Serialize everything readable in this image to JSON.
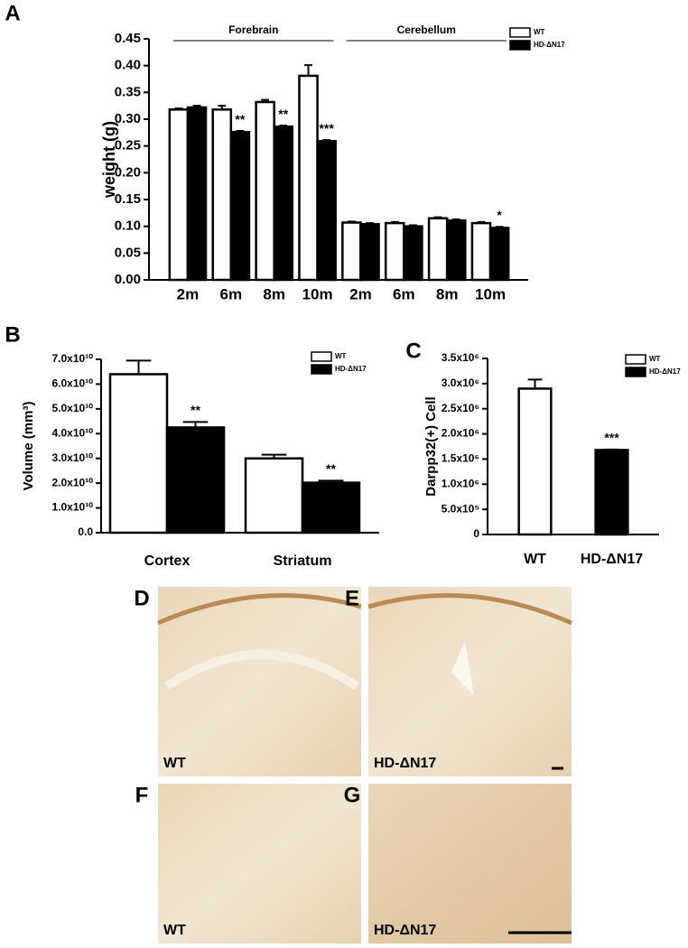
{
  "chart_data": [
    {
      "type": "bar",
      "panel": "A",
      "y_label": "weight (g)",
      "groups": [
        "Forebrain",
        "Cerebellum"
      ],
      "categories": [
        "2m",
        "6m",
        "8m",
        "10m",
        "2m",
        "6m",
        "8m",
        "10m"
      ],
      "series": [
        {
          "name": "WT",
          "color": "#ffffff",
          "values": [
            0.318,
            0.318,
            0.332,
            0.381,
            0.107,
            0.106,
            0.115,
            0.106
          ],
          "errors": [
            0.002,
            0.007,
            0.004,
            0.02,
            0.002,
            0.002,
            0.002,
            0.002
          ]
        },
        {
          "name": "HD-ΔN17",
          "color": "#000000",
          "values": [
            0.322,
            0.276,
            0.286,
            0.259,
            0.104,
            0.1,
            0.111,
            0.097
          ],
          "errors": [
            0.003,
            0.002,
            0.002,
            0.002,
            0.002,
            0.002,
            0.002,
            0.002
          ],
          "significance": [
            null,
            "**",
            "**",
            "***",
            null,
            null,
            null,
            "*"
          ]
        }
      ],
      "ylim": [
        0,
        0.45
      ],
      "yticks": [
        {
          "value": 0,
          "label": "0.00"
        },
        {
          "value": 0.05,
          "label": "0.05"
        },
        {
          "value": 0.1,
          "label": "0.10"
        },
        {
          "value": 0.15,
          "label": "0.15"
        },
        {
          "value": 0.2,
          "label": "0.20"
        },
        {
          "value": 0.25,
          "label": "0.25"
        },
        {
          "value": 0.3,
          "label": "0.30"
        },
        {
          "value": 0.35,
          "label": "0.35"
        },
        {
          "value": 0.4,
          "label": "0.40"
        },
        {
          "value": 0.45,
          "label": "0.45"
        }
      ]
    },
    {
      "type": "bar",
      "panel": "B",
      "y_label": "Volume (mm³)",
      "categories": [
        "Cortex",
        "Striatum"
      ],
      "series": [
        {
          "name": "WT",
          "color": "#ffffff",
          "values": [
            64000000000,
            30000000000
          ],
          "errors": [
            5500000000,
            1500000000
          ]
        },
        {
          "name": "HD-ΔN17",
          "color": "#000000",
          "values": [
            42500000000,
            20200000000
          ],
          "errors": [
            2200000000,
            800000000
          ],
          "significance": [
            "**",
            "**"
          ]
        }
      ],
      "ylim": [
        0,
        70000000000
      ],
      "yticks": [
        {
          "value": 0,
          "label": "0.0"
        },
        {
          "value": 10000000000,
          "label": "1.0x10¹⁰"
        },
        {
          "value": 20000000000,
          "label": "2.0x10¹⁰"
        },
        {
          "value": 30000000000,
          "label": "3.0x10¹⁰"
        },
        {
          "value": 40000000000,
          "label": "4.0x10¹⁰"
        },
        {
          "value": 50000000000,
          "label": "5.0x10¹⁰"
        },
        {
          "value": 60000000000,
          "label": "6.0x10¹⁰"
        },
        {
          "value": 70000000000,
          "label": "7.0x10¹⁰"
        }
      ]
    },
    {
      "type": "bar",
      "panel": "C",
      "y_label": "Darpp32(+) Cell",
      "categories": [
        "WT",
        "HD-ΔN17"
      ],
      "values": [
        2900000,
        1680000
      ],
      "errors": [
        180000,
        10000
      ],
      "colors": [
        "#ffffff",
        "#000000"
      ],
      "significance": [
        null,
        "***"
      ],
      "ylim": [
        0,
        3500000
      ],
      "yticks": [
        0,
        {
          "value": 500000,
          "label": "5.0x10⁵"
        },
        {
          "value": 1000000,
          "label": "1.0x10⁶"
        },
        {
          "value": 1500000,
          "label": "1.5x10⁶"
        },
        {
          "value": 2000000,
          "label": "2.0x10⁶"
        },
        {
          "value": 2500000,
          "label": "2.5x10⁶"
        },
        {
          "value": 3000000,
          "label": "3.0x10⁶"
        },
        {
          "value": 3500000,
          "label": "3.5x10⁶"
        }
      ]
    }
  ],
  "panels": [
    {
      "letter": "D",
      "label": "WT"
    },
    {
      "letter": "E",
      "label": "HD-ΔN17"
    },
    {
      "letter": "F",
      "label": "WT"
    },
    {
      "letter": "G",
      "label": "HD-ΔN17"
    }
  ]
}
